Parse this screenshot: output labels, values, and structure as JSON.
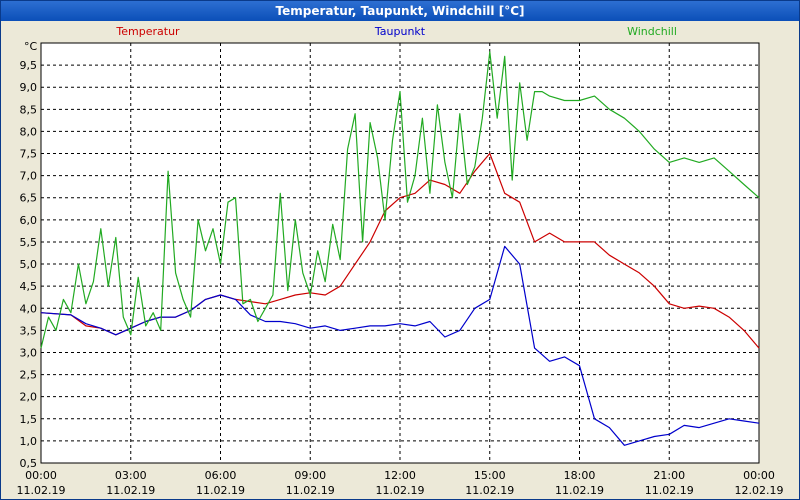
{
  "window": {
    "title": "Temperatur, Taupunkt, Windchill [°C]"
  },
  "colors": {
    "temperatur": "#cc0000",
    "taupunkt": "#0000cc",
    "windchill": "#22aa22",
    "grid": "#000000"
  },
  "chart_data": {
    "type": "line",
    "title": "Temperatur, Taupunkt, Windchill [°C]",
    "ylabel": "°C",
    "ylim": [
      0.5,
      10.0
    ],
    "yticks": [
      0.5,
      1.0,
      1.5,
      2.0,
      2.5,
      3.0,
      3.5,
      4.0,
      4.5,
      5.0,
      5.5,
      6.0,
      6.5,
      7.0,
      7.5,
      8.0,
      8.5,
      9.0,
      9.5
    ],
    "ytick_labels": [
      "0,5",
      "1,0",
      "1,5",
      "2,0",
      "2,5",
      "3,0",
      "3,5",
      "4,0",
      "4,5",
      "5,0",
      "5,5",
      "6,0",
      "6,5",
      "7,0",
      "7,5",
      "8,0",
      "8,5",
      "9,0",
      "9,5"
    ],
    "xlim": [
      0,
      24
    ],
    "xticks": [
      {
        "hour": 0,
        "time": "00:00",
        "date": "11.02.19"
      },
      {
        "hour": 3,
        "time": "03:00",
        "date": "11.02.19"
      },
      {
        "hour": 6,
        "time": "06:00",
        "date": "11.02.19"
      },
      {
        "hour": 9,
        "time": "09:00",
        "date": "11.02.19"
      },
      {
        "hour": 12,
        "time": "12:00",
        "date": "11.02.19"
      },
      {
        "hour": 15,
        "time": "15:00",
        "date": "11.02.19"
      },
      {
        "hour": 18,
        "time": "18:00",
        "date": "11.02.19"
      },
      {
        "hour": 21,
        "time": "21:00",
        "date": "11.02.19"
      },
      {
        "hour": 24,
        "time": "00:00",
        "date": "12.02.19"
      }
    ],
    "grid": true,
    "legend": "top",
    "series": [
      {
        "name": "Temperatur",
        "color": "#cc0000",
        "x": [
          0,
          1,
          1.5,
          2,
          2.5,
          3,
          3.5,
          4,
          4.5,
          5,
          5.5,
          6,
          6.5,
          7,
          7.5,
          8,
          8.5,
          9,
          9.5,
          10,
          10.5,
          11,
          11.5,
          12,
          12.5,
          13,
          13.5,
          14,
          14.5,
          15,
          15.5,
          16,
          16.5,
          17,
          17.5,
          18,
          18.5,
          19,
          19.5,
          20,
          20.5,
          21,
          21.5,
          22,
          22.5,
          23,
          23.5,
          24
        ],
        "y": [
          3.9,
          3.85,
          3.6,
          3.55,
          3.4,
          3.55,
          3.7,
          3.8,
          3.8,
          3.95,
          4.2,
          4.3,
          4.2,
          4.15,
          4.1,
          4.2,
          4.3,
          4.35,
          4.3,
          4.5,
          5.0,
          5.5,
          6.2,
          6.5,
          6.6,
          6.9,
          6.8,
          6.6,
          7.1,
          7.5,
          6.6,
          6.4,
          5.5,
          5.7,
          5.5,
          5.5,
          5.5,
          5.2,
          5.0,
          4.8,
          4.5,
          4.1,
          4.0,
          4.05,
          4.0,
          3.8,
          3.5,
          3.1
        ]
      },
      {
        "name": "Taupunkt",
        "color": "#0000cc",
        "x": [
          0,
          1,
          1.5,
          2,
          2.5,
          3,
          3.5,
          4,
          4.5,
          5,
          5.5,
          6,
          6.5,
          7,
          7.5,
          8,
          8.5,
          9,
          9.5,
          10,
          10.5,
          11,
          11.5,
          12,
          12.5,
          13,
          13.5,
          14,
          14.5,
          15,
          15.5,
          16,
          16.5,
          17,
          17.5,
          18,
          18.5,
          19,
          19.5,
          20,
          20.5,
          21,
          21.5,
          22,
          22.5,
          23,
          23.5,
          24
        ],
        "y": [
          3.9,
          3.85,
          3.65,
          3.55,
          3.4,
          3.55,
          3.7,
          3.8,
          3.8,
          3.95,
          4.2,
          4.3,
          4.2,
          3.85,
          3.7,
          3.7,
          3.65,
          3.55,
          3.6,
          3.5,
          3.55,
          3.6,
          3.6,
          3.65,
          3.6,
          3.7,
          3.35,
          3.5,
          4.0,
          4.2,
          5.4,
          5.0,
          3.1,
          2.8,
          2.9,
          2.7,
          1.5,
          1.3,
          0.9,
          1.0,
          1.1,
          1.15,
          1.35,
          1.3,
          1.4,
          1.5,
          1.45,
          1.4
        ]
      },
      {
        "name": "Windchill",
        "color": "#22aa22",
        "x": [
          0,
          0.25,
          0.5,
          0.75,
          1,
          1.25,
          1.5,
          1.75,
          2,
          2.25,
          2.5,
          2.75,
          3,
          3.25,
          3.5,
          3.75,
          4,
          4.25,
          4.5,
          4.75,
          5,
          5.25,
          5.5,
          5.75,
          6,
          6.25,
          6.5,
          6.75,
          7,
          7.25,
          7.5,
          7.75,
          8,
          8.25,
          8.5,
          8.75,
          9,
          9.25,
          9.5,
          9.75,
          10,
          10.25,
          10.5,
          10.75,
          11,
          11.25,
          11.5,
          11.75,
          12,
          12.25,
          12.5,
          12.75,
          13,
          13.25,
          13.5,
          13.75,
          14,
          14.25,
          14.5,
          14.75,
          15,
          15.25,
          15.5,
          15.75,
          16,
          16.25,
          16.5,
          16.75,
          17,
          17.5,
          18,
          18.5,
          19,
          19.5,
          20,
          20.5,
          21,
          21.5,
          22,
          22.5,
          23,
          23.5,
          24
        ],
        "y": [
          3.1,
          3.8,
          3.5,
          4.2,
          3.9,
          5.0,
          4.1,
          4.6,
          5.8,
          4.5,
          5.6,
          3.8,
          3.4,
          4.7,
          3.6,
          3.9,
          3.5,
          7.1,
          4.8,
          4.2,
          3.8,
          6.0,
          5.3,
          5.8,
          5.0,
          6.4,
          6.5,
          4.1,
          4.2,
          3.7,
          4.0,
          4.3,
          6.6,
          4.4,
          6.0,
          4.8,
          4.3,
          5.3,
          4.6,
          5.9,
          5.1,
          7.6,
          8.4,
          5.5,
          8.2,
          7.4,
          6.0,
          7.8,
          8.9,
          6.4,
          7.0,
          8.3,
          6.6,
          8.6,
          7.3,
          6.5,
          8.4,
          6.8,
          7.2,
          8.3,
          9.8,
          8.3,
          9.7,
          6.9,
          9.1,
          7.8,
          8.9,
          8.9,
          8.8,
          8.7,
          8.7,
          8.8,
          8.5,
          8.3,
          8.0,
          7.6,
          7.3,
          7.4,
          7.3,
          7.4,
          7.1,
          6.8,
          6.5
        ]
      }
    ]
  }
}
